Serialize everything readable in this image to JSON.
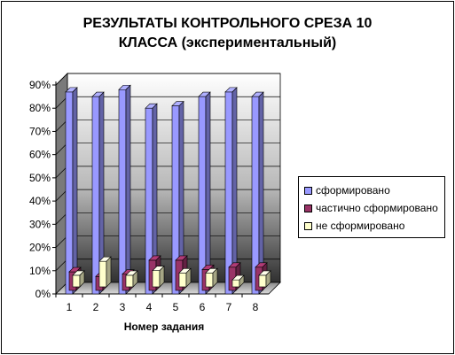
{
  "chart_data": {
    "type": "bar",
    "title_line1": "РЕЗУЛЬТАТЫ  КОНТРОЛЬНОГО СРЕЗА 10",
    "title_line2": "КЛАССА (экспериментальный)",
    "xlabel": "Номер задания",
    "ylabel": "",
    "categories": [
      "1",
      "2",
      "3",
      "4",
      "5",
      "6",
      "7",
      "8"
    ],
    "ylim": [
      0,
      90
    ],
    "yticks": [
      "0%",
      "10%",
      "20%",
      "30%",
      "40%",
      "50%",
      "60%",
      "70%",
      "80%",
      "90%"
    ],
    "grid": true,
    "legend_position": "right",
    "series": [
      {
        "name": "сформировано",
        "color": "#9999ff",
        "values": [
          87,
          85,
          88,
          80,
          81,
          85,
          87,
          85
        ]
      },
      {
        "name": "частично сформировано",
        "color": "#993366",
        "values": [
          8,
          6,
          7,
          13,
          13,
          9,
          10,
          10
        ]
      },
      {
        "name": "не сформировано",
        "color": "#ffffcc",
        "values": [
          5,
          11,
          5,
          7,
          6,
          6,
          3,
          5
        ]
      }
    ]
  }
}
